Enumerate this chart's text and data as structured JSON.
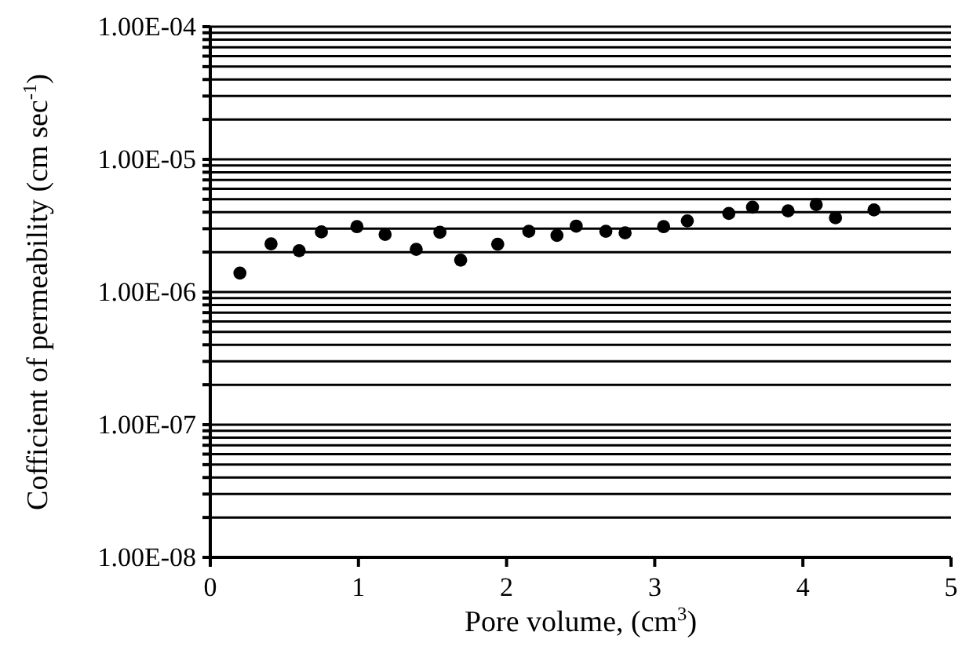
{
  "chart_data": {
    "type": "scatter",
    "xlabel": "Pore volume, (cm$^{3}$)",
    "ylabel": "Cofficient of permeability (cm sec$^{-1}$)",
    "x": [
      0.2,
      0.41,
      0.6,
      0.75,
      0.99,
      1.18,
      1.39,
      1.55,
      1.69,
      1.94,
      2.15,
      2.34,
      2.47,
      2.67,
      2.8,
      3.06,
      3.22,
      3.5,
      3.66,
      3.9,
      4.09,
      4.22,
      4.48
    ],
    "values": [
      1.39e-06,
      2.31e-06,
      2.05e-06,
      2.84e-06,
      3.11e-06,
      2.72e-06,
      2.1e-06,
      2.82e-06,
      1.74e-06,
      2.29e-06,
      2.87e-06,
      2.67e-06,
      3.14e-06,
      2.87e-06,
      2.79e-06,
      3.11e-06,
      3.44e-06,
      3.91e-06,
      4.36e-06,
      4.09e-06,
      4.56e-06,
      3.63e-06,
      4.16e-06
    ],
    "color": "#000000",
    "marker": "circle",
    "log": true,
    "grid": "y",
    "xlim": [
      0,
      5
    ],
    "xticks": [
      0,
      1,
      2,
      3,
      4,
      5
    ],
    "ylim": [
      1e-08,
      0.0001
    ],
    "yticks": [
      {
        "value": 1e-08,
        "label": "1.00E-08"
      },
      {
        "value": 2e-08,
        "label": null
      },
      {
        "value": 3e-08,
        "label": null
      },
      {
        "value": 4e-08,
        "label": null
      },
      {
        "value": 5e-08,
        "label": null
      },
      {
        "value": 6e-08,
        "label": null
      },
      {
        "value": 7e-08,
        "label": null
      },
      {
        "value": 8e-08,
        "label": null
      },
      {
        "value": 9e-08,
        "label": null
      },
      {
        "value": 1e-07,
        "label": "1.00E-07"
      },
      {
        "value": 2e-07,
        "label": null
      },
      {
        "value": 3e-07,
        "label": null
      },
      {
        "value": 4e-07,
        "label": null
      },
      {
        "value": 5e-07,
        "label": null
      },
      {
        "value": 6e-07,
        "label": null
      },
      {
        "value": 7e-07,
        "label": null
      },
      {
        "value": 8e-07,
        "label": null
      },
      {
        "value": 9e-07,
        "label": null
      },
      {
        "value": 1e-06,
        "label": "1.00E-06"
      },
      {
        "value": 2e-06,
        "label": null
      },
      {
        "value": 3e-06,
        "label": null
      },
      {
        "value": 4e-06,
        "label": null
      },
      {
        "value": 5e-06,
        "label": null
      },
      {
        "value": 6e-06,
        "label": null
      },
      {
        "value": 7e-06,
        "label": null
      },
      {
        "value": 8e-06,
        "label": null
      },
      {
        "value": 9e-06,
        "label": null
      },
      {
        "value": 1e-05,
        "label": "1.00E-05"
      },
      {
        "value": 2e-05,
        "label": null
      },
      {
        "value": 3e-05,
        "label": null
      },
      {
        "value": 4e-05,
        "label": null
      },
      {
        "value": 5e-05,
        "label": null
      },
      {
        "value": 6e-05,
        "label": null
      },
      {
        "value": 7e-05,
        "label": null
      },
      {
        "value": 8e-05,
        "label": null
      },
      {
        "value": 9e-05,
        "label": null
      },
      {
        "value": 0.0001,
        "label": "1.00E-04"
      }
    ]
  }
}
